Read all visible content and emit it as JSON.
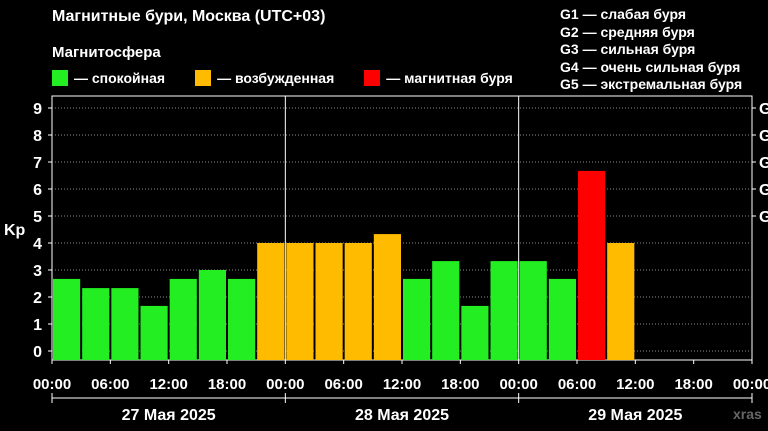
{
  "title": "Магнитные бури, Москва (UTC+03)",
  "subtitle": "Магнитосфера",
  "legend": [
    {
      "label": "— спокойная",
      "color": "#22ee22"
    },
    {
      "label": "— возбужденная",
      "color": "#ffbb00"
    },
    {
      "label": "— магнитная буря",
      "color": "#ff0000"
    }
  ],
  "g_levels": [
    "G1 — слабая буря",
    "G2 — средняя буря",
    "G3 — сильная буря",
    "G4 — очень сильная буря",
    "G5 — экстремальная буря"
  ],
  "watermark": "xras",
  "chart_data": {
    "type": "bar",
    "ylabel": "Kp",
    "ylim": [
      0,
      9
    ],
    "yticks": [
      0,
      1,
      2,
      3,
      4,
      5,
      6,
      7,
      8,
      9
    ],
    "right_axis_labels": [
      "G",
      "G",
      "G",
      "G",
      "G"
    ],
    "x_tick_labels": [
      "00:00",
      "06:00",
      "12:00",
      "18:00",
      "00:00",
      "06:00",
      "12:00",
      "18:00",
      "00:00",
      "06:00",
      "12:00",
      "18:00",
      "00:00"
    ],
    "days": [
      "27 Мая 2025",
      "28 Мая 2025",
      "29 Мая 2025"
    ],
    "interval_hours": 3,
    "values": [
      2.67,
      2.33,
      2.33,
      1.67,
      2.67,
      3.0,
      2.67,
      4.0,
      4.0,
      4.0,
      4.0,
      4.33,
      2.67,
      3.33,
      1.67,
      3.33,
      3.33,
      2.67,
      6.67,
      4.0
    ],
    "levels": [
      "quiet",
      "quiet",
      "quiet",
      "quiet",
      "quiet",
      "quiet",
      "quiet",
      "active",
      "active",
      "active",
      "active",
      "active",
      "quiet",
      "quiet",
      "quiet",
      "quiet",
      "quiet",
      "quiet",
      "storm",
      "active"
    ],
    "colors": {
      "quiet": "#22ee22",
      "active": "#ffbb00",
      "storm": "#ff0000"
    },
    "grid": true
  }
}
